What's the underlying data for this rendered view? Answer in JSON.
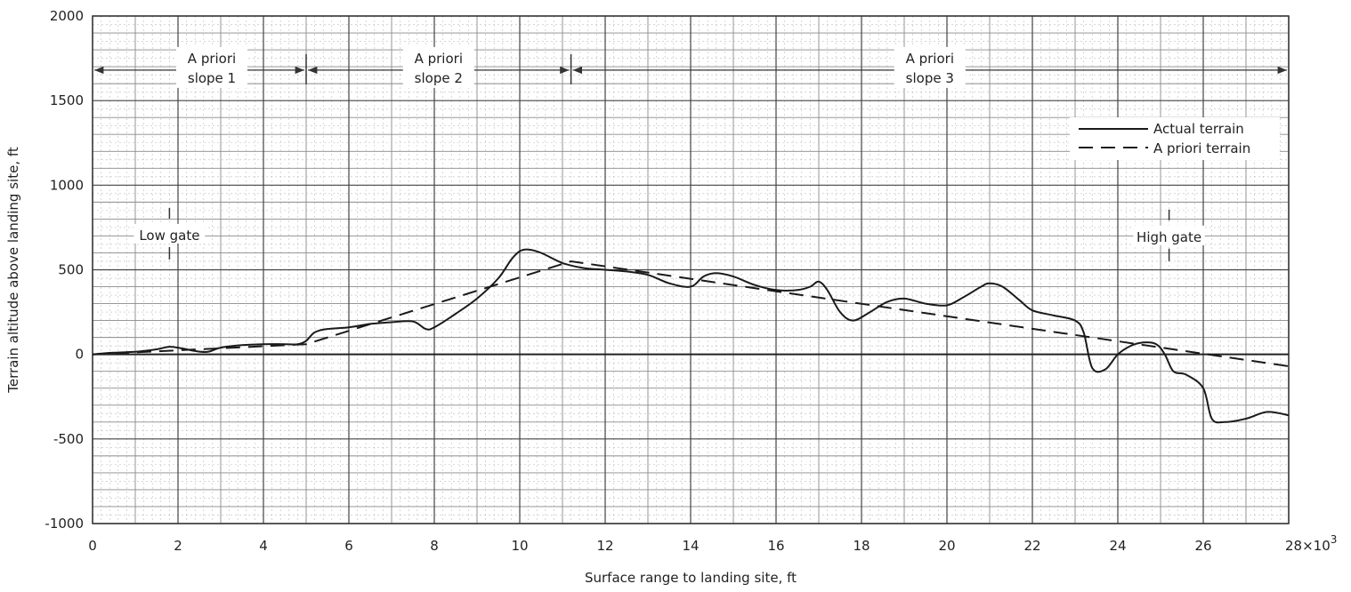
{
  "chart_data": {
    "type": "line",
    "title": "",
    "xlabel": "Surface range to landing site, ft",
    "ylabel": "Terrain altitude above landing site, ft",
    "x_multiplier_label": "28×10",
    "x_multiplier_exp": "3",
    "xlim": [
      0,
      28000
    ],
    "ylim": [
      -1000,
      2000
    ],
    "xticks": [
      0,
      2000,
      4000,
      6000,
      8000,
      10000,
      12000,
      14000,
      16000,
      18000,
      20000,
      22000,
      24000,
      26000,
      28000
    ],
    "xtick_labels": [
      "0",
      "2",
      "4",
      "6",
      "8",
      "10",
      "12",
      "14",
      "16",
      "18",
      "20",
      "22",
      "24",
      "26",
      ""
    ],
    "yticks": [
      -1000,
      -500,
      0,
      500,
      1000,
      1500,
      2000
    ],
    "ytick_labels": [
      "-1000",
      "-500",
      "0",
      "500",
      "1000",
      "1500",
      "2000"
    ],
    "grid": true,
    "legend_position": "top-right",
    "series": [
      {
        "name": "Actual terrain",
        "style": "solid",
        "x": [
          0,
          500,
          1000,
          1500,
          1800,
          2100,
          2400,
          2700,
          3000,
          3500,
          4000,
          4500,
          4800,
          5000,
          5200,
          5500,
          6000,
          6500,
          7000,
          7500,
          7800,
          8000,
          8500,
          9000,
          9500,
          9800,
          10000,
          10200,
          10500,
          11000,
          11500,
          12000,
          12500,
          13000,
          13500,
          14000,
          14300,
          14600,
          15000,
          15500,
          16000,
          16500,
          16800,
          17000,
          17200,
          17500,
          17800,
          18200,
          18600,
          19000,
          19500,
          20000,
          20400,
          20800,
          21000,
          21300,
          21700,
          22000,
          22500,
          23000,
          23200,
          23400,
          23700,
          24000,
          24300,
          24600,
          24900,
          25100,
          25300,
          25600,
          26000,
          26200,
          26500,
          27000,
          27500,
          28000
        ],
        "y": [
          0,
          10,
          15,
          30,
          45,
          35,
          20,
          15,
          40,
          55,
          60,
          60,
          60,
          80,
          130,
          150,
          160,
          180,
          190,
          195,
          150,
          160,
          240,
          330,
          450,
          560,
          610,
          620,
          600,
          540,
          510,
          500,
          490,
          470,
          420,
          400,
          460,
          480,
          460,
          410,
          380,
          380,
          400,
          430,
          380,
          250,
          200,
          250,
          310,
          330,
          300,
          290,
          340,
          400,
          420,
          400,
          320,
          260,
          230,
          200,
          130,
          -80,
          -90,
          0,
          50,
          70,
          60,
          0,
          -100,
          -120,
          -200,
          -380,
          -400,
          -380,
          -340,
          -360
        ]
      },
      {
        "name": "A priori terrain",
        "style": "dashed",
        "x": [
          0,
          5000,
          11200,
          28000
        ],
        "y": [
          0,
          60,
          550,
          -70
        ]
      }
    ],
    "annotations": {
      "slope1_line1": "A priori",
      "slope1_line2": "slope 1",
      "slope2_line1": "A priori",
      "slope2_line2": "slope 2",
      "slope3_line1": "A priori",
      "slope3_line2": "slope 3",
      "low_gate": "Low gate",
      "high_gate": "High gate",
      "slope_arrow_y": 1680,
      "slope_breaks_x": [
        5000,
        11200
      ],
      "low_gate_x": 1800,
      "low_gate_y": 750,
      "high_gate_x": 25200,
      "high_gate_y": 740
    }
  }
}
